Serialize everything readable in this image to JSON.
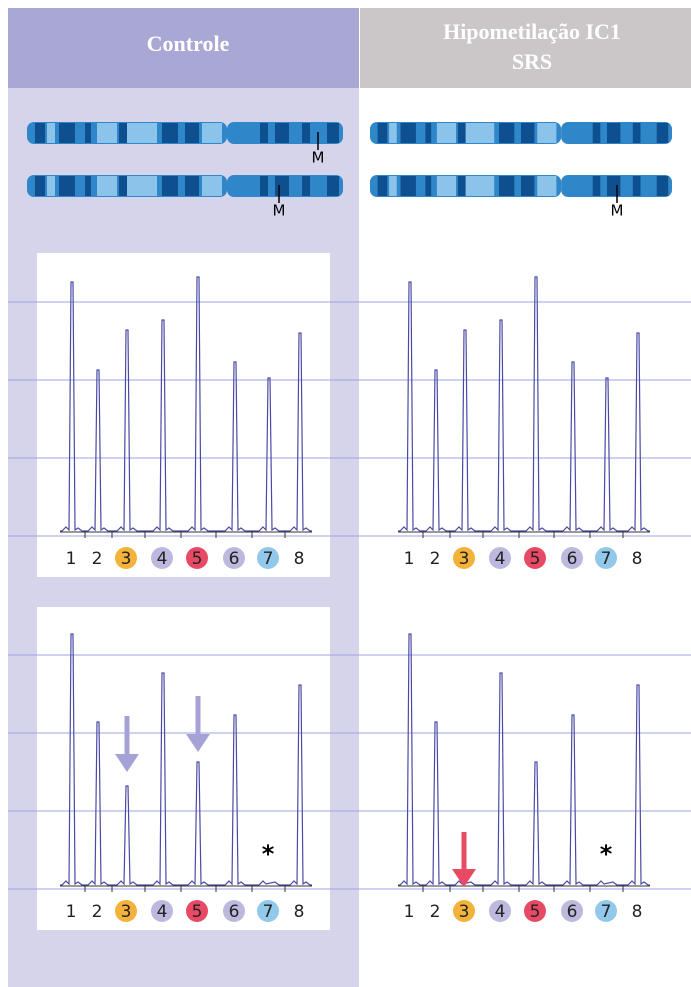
{
  "header": {
    "left": "Controle",
    "right": [
      "Hipometilação IC1",
      "SRS"
    ]
  },
  "markers": [
    "M",
    "M",
    "M"
  ],
  "panels": [
    {
      "labels": [
        "1",
        "2",
        "3",
        "4",
        "5",
        "6",
        "7",
        "8"
      ]
    },
    {
      "labels": [
        "1",
        "2",
        "3",
        "4",
        "5",
        "6",
        "7",
        "8"
      ]
    },
    {
      "labels": [
        "1",
        "2",
        "3",
        "4",
        "5",
        "6",
        "7",
        "8"
      ],
      "asterisk": "*"
    },
    {
      "labels": [
        "1",
        "2",
        "3",
        "4",
        "5",
        "6",
        "7",
        "8"
      ],
      "asterisk": "*"
    }
  ]
}
